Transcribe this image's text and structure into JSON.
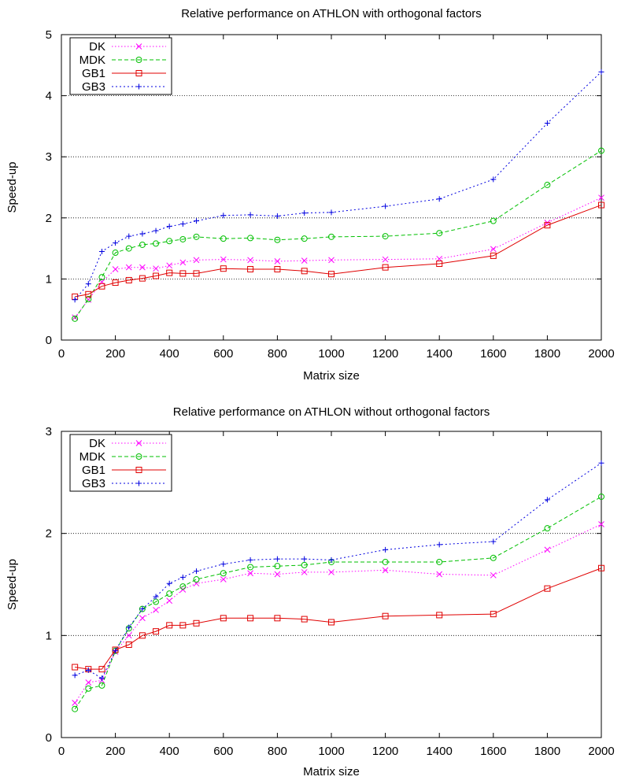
{
  "chart_data": [
    {
      "type": "line",
      "title": "Relative performance on ATHLON with orthogonal factors",
      "xlabel": "Matrix size",
      "ylabel": "Speed-up",
      "xlim": [
        0,
        2000
      ],
      "ylim": [
        0,
        5
      ],
      "xticks": [
        0,
        200,
        400,
        600,
        800,
        1000,
        1200,
        1400,
        1600,
        1800,
        2000
      ],
      "yticks": [
        0,
        1,
        2,
        3,
        4,
        5
      ],
      "grid": "horizontal",
      "legend_position": "top-left",
      "x": [
        50,
        100,
        150,
        200,
        250,
        300,
        350,
        400,
        450,
        500,
        600,
        700,
        800,
        900,
        1000,
        1200,
        1400,
        1600,
        1800,
        2000
      ],
      "series": [
        {
          "name": "DK",
          "color": "#ff00ff",
          "marker": "x",
          "dash": "1.5,2.5",
          "values": [
            0.37,
            0.66,
            0.95,
            1.16,
            1.19,
            1.19,
            1.17,
            1.22,
            1.27,
            1.31,
            1.32,
            1.31,
            1.29,
            1.3,
            1.31,
            1.32,
            1.33,
            1.49,
            1.92,
            2.33
          ]
        },
        {
          "name": "MDK",
          "color": "#00c000",
          "marker": "circle",
          "dash": "5,3",
          "values": [
            0.35,
            0.67,
            1.03,
            1.43,
            1.5,
            1.56,
            1.58,
            1.62,
            1.65,
            1.69,
            1.66,
            1.67,
            1.64,
            1.66,
            1.69,
            1.7,
            1.75,
            1.95,
            2.54,
            3.1
          ]
        },
        {
          "name": "GB1",
          "color": "#e00000",
          "marker": "square",
          "dash": "",
          "values": [
            0.71,
            0.75,
            0.88,
            0.94,
            0.98,
            1.01,
            1.05,
            1.1,
            1.09,
            1.09,
            1.17,
            1.16,
            1.16,
            1.13,
            1.08,
            1.19,
            1.25,
            1.38,
            1.88,
            2.21
          ]
        },
        {
          "name": "GB3",
          "color": "#0000e0",
          "marker": "plus",
          "dash": "2,3",
          "values": [
            0.66,
            0.92,
            1.45,
            1.59,
            1.7,
            1.74,
            1.79,
            1.86,
            1.9,
            1.95,
            2.04,
            2.05,
            2.03,
            2.08,
            2.09,
            2.19,
            2.31,
            2.63,
            3.55,
            4.39
          ]
        }
      ]
    },
    {
      "type": "line",
      "title": "Relative performance on ATHLON without orthogonal factors",
      "xlabel": "Matrix size",
      "ylabel": "Speed-up",
      "xlim": [
        0,
        2000
      ],
      "ylim": [
        0,
        3
      ],
      "xticks": [
        0,
        200,
        400,
        600,
        800,
        1000,
        1200,
        1400,
        1600,
        1800,
        2000
      ],
      "yticks": [
        0,
        1,
        2,
        3
      ],
      "grid": "horizontal",
      "legend_position": "top-left",
      "x": [
        50,
        100,
        150,
        200,
        250,
        300,
        350,
        400,
        450,
        500,
        600,
        700,
        800,
        900,
        1000,
        1200,
        1400,
        1600,
        1800,
        2000
      ],
      "series": [
        {
          "name": "DK",
          "color": "#ff00ff",
          "marker": "x",
          "dash": "1.5,2.5",
          "values": [
            0.34,
            0.54,
            0.56,
            0.84,
            1.0,
            1.17,
            1.25,
            1.34,
            1.45,
            1.51,
            1.55,
            1.61,
            1.6,
            1.62,
            1.62,
            1.64,
            1.6,
            1.59,
            1.84,
            2.09
          ]
        },
        {
          "name": "MDK",
          "color": "#00c000",
          "marker": "circle",
          "dash": "5,3",
          "values": [
            0.28,
            0.48,
            0.51,
            0.85,
            1.07,
            1.26,
            1.33,
            1.41,
            1.48,
            1.55,
            1.61,
            1.67,
            1.68,
            1.69,
            1.72,
            1.72,
            1.72,
            1.76,
            2.05,
            2.36
          ]
        },
        {
          "name": "GB1",
          "color": "#e00000",
          "marker": "square",
          "dash": "",
          "values": [
            0.69,
            0.67,
            0.67,
            0.86,
            0.91,
            1.0,
            1.04,
            1.1,
            1.1,
            1.12,
            1.17,
            1.17,
            1.17,
            1.16,
            1.13,
            1.19,
            1.2,
            1.21,
            1.46,
            1.66
          ]
        },
        {
          "name": "GB3",
          "color": "#0000e0",
          "marker": "plus",
          "dash": "2,3",
          "values": [
            0.61,
            0.66,
            0.58,
            0.85,
            1.08,
            1.26,
            1.38,
            1.51,
            1.57,
            1.63,
            1.7,
            1.74,
            1.75,
            1.75,
            1.74,
            1.84,
            1.89,
            1.92,
            2.33,
            2.69
          ]
        }
      ]
    }
  ]
}
